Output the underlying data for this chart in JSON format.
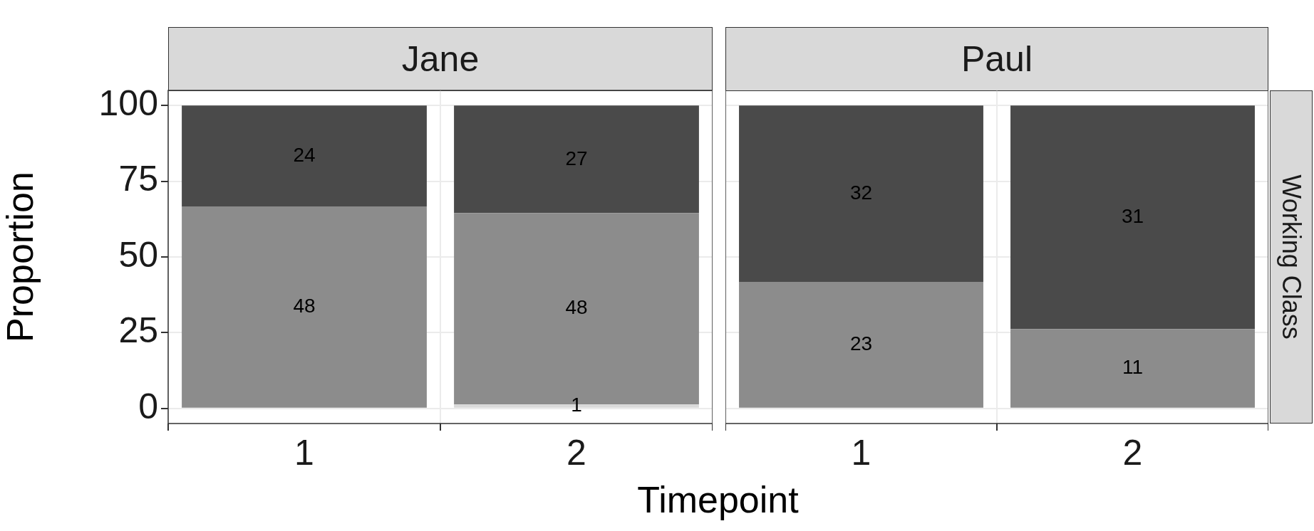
{
  "chart_data": [
    {
      "type": "bar",
      "title": "Jane",
      "xlabel": "Timepoint",
      "ylabel": "Proportion",
      "categories": [
        "1",
        "2"
      ],
      "stacked": true,
      "ylim": [
        -5,
        105
      ],
      "yticks": [
        0,
        25,
        50,
        75,
        100
      ],
      "grid": true,
      "legend": false,
      "annotations": [
        "1",
        "48",
        "48",
        "24",
        "27"
      ],
      "series": [
        {
          "color": "#d9d9d9",
          "values": [
            null,
            1.3
          ]
        },
        {
          "color": "#8c8c8c",
          "values": [
            66.7,
            63.2
          ]
        },
        {
          "color": "#4a4a4a",
          "values": [
            33.3,
            35.5
          ]
        }
      ]
    },
    {
      "type": "bar",
      "title": "Paul",
      "categories": [
        "1",
        "2"
      ],
      "stacked": true,
      "ylim": [
        -5,
        105
      ],
      "yticks": [
        0,
        25,
        50,
        75,
        100
      ],
      "grid": true,
      "legend": false,
      "tick_labels": "x",
      "annotations": [
        "Working Class",
        "23",
        "11",
        "32",
        "31"
      ],
      "series": [
        {
          "color": "#8c8c8c",
          "values": [
            41.8,
            26.2
          ]
        },
        {
          "color": "#4a4a4a",
          "values": [
            58.2,
            73.8
          ]
        }
      ]
    }
  ]
}
